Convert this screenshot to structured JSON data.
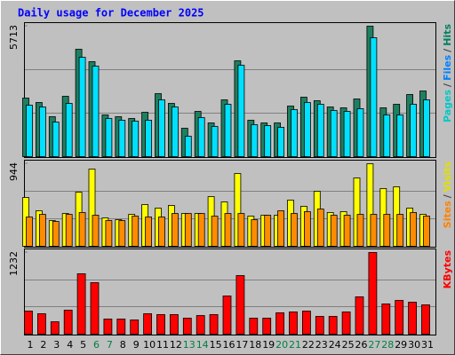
{
  "title": "Daily usage for December 2025",
  "x_axis": {
    "categories": [
      "1",
      "2",
      "3",
      "4",
      "5",
      "6",
      "7",
      "8",
      "9",
      "10",
      "11",
      "12",
      "13",
      "14",
      "15",
      "16",
      "17",
      "18",
      "19",
      "20",
      "21",
      "22",
      "23",
      "24",
      "25",
      "26",
      "27",
      "28",
      "29",
      "30",
      "31"
    ],
    "color": "#000000",
    "weekend_color": "#008040",
    "weekend_indices": [
      5,
      6,
      12,
      13,
      19,
      20,
      26,
      27
    ]
  },
  "legend_separator": "/",
  "chart_data": [
    {
      "type": "bar",
      "ylim": [
        0,
        5713
      ],
      "yticks": [
        5713
      ],
      "grid": true,
      "legend": [
        {
          "name": "Pages",
          "color": "#00c8c8"
        },
        {
          "name": "Files",
          "color": "#0080ff"
        },
        {
          "name": "Hits",
          "color": "#008060"
        }
      ],
      "series": [
        {
          "name": "Hits",
          "color": "#1e8060",
          "values": [
            2565,
            2371,
            1749,
            2643,
            4703,
            4159,
            1827,
            1749,
            1671,
            1943,
            2759,
            2332,
            1244,
            1982,
            1477,
            2487,
            4197,
            1594,
            1477,
            1477,
            2215,
            2604,
            2449,
            2176,
            2138,
            2526,
            5713,
            2138,
            2293,
            2721,
            2876
          ]
        },
        {
          "name": "Files",
          "color": "#00e0ff",
          "values": [
            2254,
            2176,
            1516,
            2332,
            4353,
            3964,
            1671,
            1594,
            1555,
            1594,
            2487,
            2176,
            894,
            1710,
            1321,
            2293,
            4003,
            1399,
            1360,
            1283,
            2060,
            2371,
            2293,
            2021,
            1982,
            2099,
            5208,
            1827,
            1827,
            2293,
            2487
          ]
        }
      ]
    },
    {
      "type": "bar",
      "ylim": [
        0,
        944
      ],
      "yticks": [
        944
      ],
      "grid": true,
      "legend": [
        {
          "name": "Sites",
          "color": "#ff8000"
        },
        {
          "name": "Visits",
          "color": "#e0e000"
        }
      ],
      "series": [
        {
          "name": "Visits",
          "color": "#ffff00",
          "values": [
            558,
            406,
            294,
            375,
            619,
            883,
            325,
            304,
            365,
            477,
            436,
            467,
            375,
            375,
            568,
            507,
            832,
            345,
            355,
            355,
            528,
            457,
            629,
            386,
            396,
            781,
            944,
            660,
            680,
            436,
            365
          ]
        },
        {
          "name": "Sites",
          "color": "#ff8c00",
          "values": [
            335,
            365,
            284,
            365,
            386,
            355,
            294,
            294,
            345,
            335,
            335,
            375,
            375,
            375,
            345,
            375,
            375,
            304,
            355,
            406,
            375,
            396,
            426,
            355,
            355,
            365,
            365,
            365,
            365,
            386,
            345
          ]
        }
      ]
    },
    {
      "type": "bar",
      "ylim": [
        0,
        1232
      ],
      "yticks": [
        1232
      ],
      "grid": true,
      "legend": [
        {
          "name": "KBytes",
          "color": "#ff0000"
        }
      ],
      "series": [
        {
          "name": "KBytes",
          "color": "#ff0000",
          "values": [
            348,
            308,
            187,
            362,
            911,
            777,
            228,
            228,
            214,
            308,
            295,
            295,
            241,
            281,
            295,
            576,
            884,
            241,
            241,
            322,
            335,
            348,
            268,
            268,
            335,
            563,
            1232,
            456,
            509,
            482,
            442
          ]
        }
      ]
    }
  ]
}
